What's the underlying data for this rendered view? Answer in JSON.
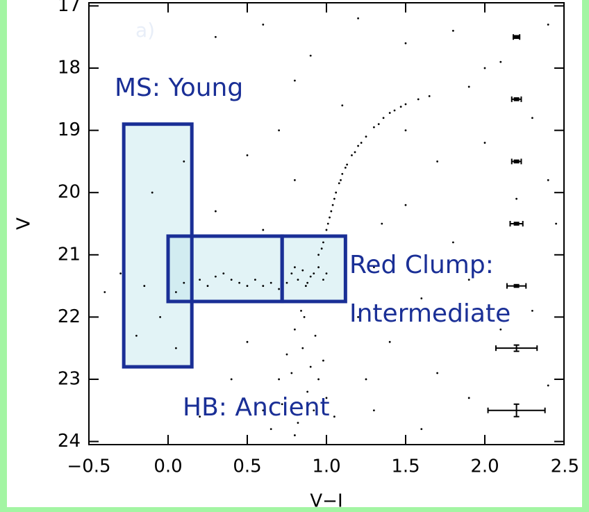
{
  "chart_data": {
    "type": "scatter",
    "xlabel": "V−I",
    "ylabel": "V",
    "xlim": [
      -0.5,
      2.5
    ],
    "ylim": [
      24.05,
      16.95
    ],
    "xticks": [
      {
        "value": -0.5,
        "label": "−0.5"
      },
      {
        "value": 0,
        "label": "0.0"
      },
      0.5,
      {
        "value": 1,
        "label": "1.0"
      },
      1.5,
      {
        "value": 2,
        "label": "2.0"
      },
      2.5
    ],
    "yticks": [
      17,
      18,
      19,
      20,
      21,
      22,
      23,
      24
    ],
    "series": [
      {
        "color": "#000000",
        "x": [
          0.95,
          0.98,
          1.0,
          1.02,
          1.04,
          1.06,
          1.08,
          1.1,
          1.13,
          1.16,
          1.2,
          1.25,
          1.3,
          1.36,
          1.43,
          1.5,
          1.58,
          1.65,
          0.97,
          1.01,
          1.05,
          1.12,
          1.22,
          1.33,
          1.47,
          0.99,
          1.03,
          1.09,
          1.18,
          1.4,
          0.78,
          0.85,
          0.9,
          0.95,
          0.82,
          0.88,
          0.92,
          1.0,
          0.8,
          0.87,
          0.75,
          0.98,
          0.2,
          0.3,
          0.4,
          0.5,
          0.6,
          0.65,
          0.35,
          0.45,
          0.55,
          0.25,
          0.15,
          0.1,
          0.05,
          0.7,
          0.8,
          0.85,
          0.9,
          0.95,
          0.75,
          0.88,
          0.92,
          0.82,
          1.0,
          0.7,
          0.78,
          0.86,
          0.93,
          0.98,
          0.72,
          1.05,
          0.65,
          0.6,
          0.8,
          0.84,
          -0.1,
          0.0,
          -0.05,
          0.05,
          0.1,
          -0.15,
          0.0,
          -0.2,
          0.3,
          0.6,
          0.9,
          1.2,
          1.5,
          1.8,
          2.1,
          2.4,
          0.4,
          0.8,
          1.1,
          1.9,
          2.3,
          0.5,
          0.7,
          1.7,
          2.0,
          2.4,
          0.3,
          0.6,
          1.5,
          1.8,
          2.2,
          2.45,
          1.3,
          1.6,
          1.9,
          2.3,
          1.4,
          1.7,
          2.1,
          2.4,
          1.3,
          1.6,
          1.9,
          0.4,
          0.2,
          -0.3,
          -0.4,
          0.5,
          1.2,
          1.5,
          2.0,
          0.8,
          1.35,
          1.25
        ],
        "values": [
          21.0,
          20.8,
          20.6,
          20.4,
          20.2,
          20.0,
          19.85,
          19.7,
          19.55,
          19.4,
          19.25,
          19.1,
          18.95,
          18.8,
          18.68,
          18.58,
          18.5,
          18.45,
          20.9,
          20.5,
          20.1,
          19.6,
          19.2,
          18.9,
          18.62,
          20.7,
          20.3,
          19.8,
          19.35,
          18.72,
          21.3,
          21.25,
          21.35,
          21.2,
          21.4,
          21.45,
          21.3,
          21.3,
          21.2,
          21.5,
          21.45,
          21.4,
          21.4,
          21.35,
          21.4,
          21.5,
          21.5,
          21.45,
          21.3,
          21.45,
          21.4,
          21.5,
          21.3,
          21.45,
          21.6,
          21.55,
          22.2,
          22.5,
          22.8,
          23.0,
          22.6,
          23.2,
          23.5,
          23.7,
          23.3,
          23.0,
          22.9,
          22.0,
          22.3,
          22.7,
          23.4,
          23.6,
          23.8,
          23.5,
          23.9,
          21.9,
          20.0,
          21.0,
          22.0,
          22.5,
          19.5,
          21.5,
          22.8,
          22.3,
          17.5,
          17.3,
          17.8,
          17.2,
          17.6,
          17.4,
          17.9,
          17.3,
          18.5,
          18.2,
          18.6,
          18.3,
          18.8,
          19.4,
          19.0,
          19.5,
          19.2,
          19.8,
          20.3,
          20.6,
          20.2,
          20.8,
          20.1,
          20.5,
          21.2,
          21.7,
          21.4,
          21.9,
          22.4,
          22.9,
          22.2,
          23.1,
          23.5,
          23.8,
          23.3,
          23.0,
          23.6,
          21.3,
          21.6,
          22.4,
          22.0,
          19.0,
          18.0,
          19.8,
          20.5,
          23.0
        ]
      }
    ],
    "errorbars": {
      "color": "#000000",
      "x": [
        2.2,
        2.2,
        2.2,
        2.2,
        2.2,
        2.2,
        2.2
      ],
      "values": [
        17.5,
        18.5,
        19.5,
        20.5,
        21.5,
        22.5,
        23.5
      ],
      "xerr": [
        0.02,
        0.03,
        0.03,
        0.04,
        0.06,
        0.13,
        0.18
      ],
      "yerr": [
        0.02,
        0.02,
        0.02,
        0.02,
        0.02,
        0.05,
        0.1
      ]
    },
    "regions": [
      {
        "x": [
          -0.28,
          0.15
        ],
        "y": [
          18.9,
          22.8
        ]
      },
      {
        "x": [
          0.0,
          0.72
        ],
        "y": [
          20.7,
          21.75
        ]
      },
      {
        "x": [
          0.72,
          1.12
        ],
        "y": [
          20.7,
          21.75
        ]
      }
    ],
    "region_color": "#1a2f96",
    "annotations": [
      "a)",
      "MS: Young",
      "Red Clump:",
      "Intermediate",
      "HB: Ancient"
    ]
  }
}
